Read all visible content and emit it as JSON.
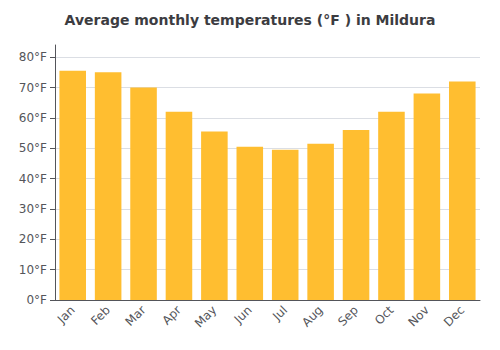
{
  "chart_data": {
    "type": "bar",
    "title": "Average monthly temperatures (°F ) in Mildura",
    "categories": [
      "Jan",
      "Feb",
      "Mar",
      "Apr",
      "May",
      "Jun",
      "Jul",
      "Aug",
      "Sep",
      "Oct",
      "Nov",
      "Dec"
    ],
    "values": [
      75.5,
      75.0,
      70.0,
      62.0,
      55.5,
      50.5,
      49.5,
      51.5,
      56.0,
      62.0,
      68.0,
      72.0
    ],
    "color": "#FFBE30",
    "ylim": [
      0,
      84
    ],
    "yticks": [
      {
        "value": 0,
        "label": "0°F"
      },
      {
        "value": 10,
        "label": "10°F"
      },
      {
        "value": 20,
        "label": "20°F"
      },
      {
        "value": 30,
        "label": "30°F"
      },
      {
        "value": 40,
        "label": "40°F"
      },
      {
        "value": 50,
        "label": "50°F"
      },
      {
        "value": 60,
        "label": "60°F"
      },
      {
        "value": 70,
        "label": "70°F"
      },
      {
        "value": 80,
        "label": "80°F"
      }
    ],
    "grid": true
  }
}
